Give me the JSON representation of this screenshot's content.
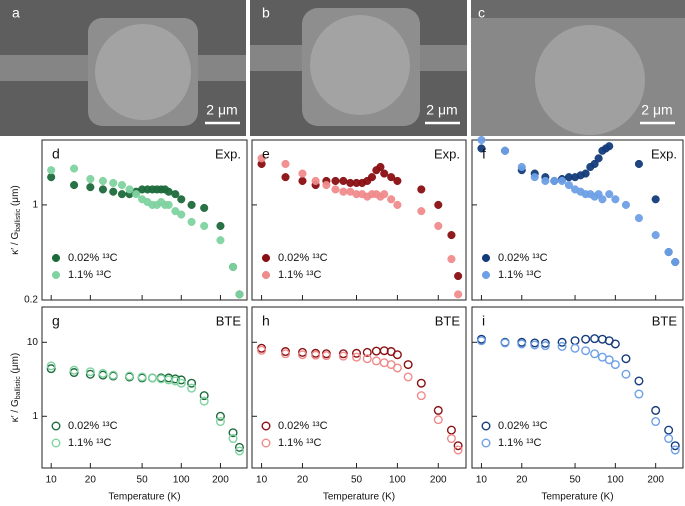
{
  "images": [
    {
      "label": "a",
      "scale": "2 μm"
    },
    {
      "label": "b",
      "scale": "2 μm"
    },
    {
      "label": "c",
      "scale": "2 μm"
    }
  ],
  "chart_data": [
    {
      "type": "scatter",
      "panel": "d",
      "annotation": "Exp.",
      "marker": "filled",
      "ylabel": [
        "κ′ / G",
        "ballistic",
        " (μm)"
      ],
      "xscale": "log",
      "yscale": "log",
      "xlim": [
        8.5,
        320
      ],
      "ylim": [
        0.2,
        3
      ],
      "xticks": [
        10,
        20,
        50,
        100,
        200
      ],
      "xticklabels": false,
      "yticks": [
        0.2,
        1
      ],
      "yticklabels": true,
      "legend": "lower left",
      "series": [
        {
          "name": "0.02% ¹³C",
          "color": "#1d6a3b",
          "x": [
            10,
            15,
            20,
            25,
            30,
            35,
            40,
            45,
            50,
            55,
            60,
            65,
            70,
            75,
            80,
            90,
            100,
            120,
            150,
            200,
            250,
            280
          ],
          "values": [
            1.6,
            1.4,
            1.35,
            1.3,
            1.25,
            1.2,
            1.2,
            1.25,
            1.3,
            1.3,
            1.3,
            1.3,
            1.3,
            1.3,
            1.25,
            1.2,
            1.1,
            1.0,
            0.95,
            0.7,
            0.35,
            0.22
          ]
        },
        {
          "name": "1.1% ¹³C",
          "color": "#7fd3a0",
          "x": [
            10,
            15,
            20,
            25,
            30,
            35,
            40,
            45,
            50,
            55,
            60,
            65,
            70,
            75,
            80,
            90,
            100,
            120,
            150,
            200,
            250,
            280
          ],
          "values": [
            1.8,
            1.85,
            1.55,
            1.5,
            1.45,
            1.4,
            1.3,
            1.2,
            1.1,
            1.05,
            1.0,
            1.0,
            1.05,
            1.0,
            1.0,
            0.9,
            0.85,
            0.75,
            0.7,
            0.55,
            0.35,
            0.22
          ]
        }
      ]
    },
    {
      "type": "scatter",
      "panel": "e",
      "annotation": "Exp.",
      "marker": "filled",
      "xscale": "log",
      "yscale": "log",
      "xlim": [
        8.5,
        320
      ],
      "ylim": [
        0.2,
        3
      ],
      "xticks": [
        10,
        20,
        50,
        100,
        200
      ],
      "xticklabels": false,
      "yticks": [
        0.2,
        1
      ],
      "yticklabels": false,
      "legend": "lower left",
      "series": [
        {
          "name": "0.02% ¹³C",
          "color": "#8a0f12",
          "x": [
            10,
            15,
            20,
            25,
            30,
            35,
            40,
            45,
            50,
            55,
            60,
            65,
            70,
            75,
            80,
            90,
            100,
            150,
            200,
            250,
            280
          ],
          "values": [
            2.0,
            1.6,
            1.5,
            1.4,
            1.5,
            1.5,
            1.5,
            1.45,
            1.45,
            1.45,
            1.5,
            1.6,
            1.8,
            1.9,
            1.7,
            1.6,
            1.5,
            1.3,
            1.0,
            0.6,
            0.3
          ]
        },
        {
          "name": "1.1% ¹³C",
          "color": "#f08b8b",
          "x": [
            10,
            15,
            20,
            25,
            30,
            35,
            40,
            45,
            50,
            55,
            60,
            65,
            70,
            75,
            80,
            90,
            100,
            150,
            200,
            250,
            280
          ],
          "values": [
            2.2,
            2.0,
            1.7,
            1.5,
            1.4,
            1.3,
            1.25,
            1.25,
            1.2,
            1.2,
            1.15,
            1.2,
            1.2,
            1.15,
            1.2,
            1.1,
            1.0,
            0.9,
            0.7,
            0.4,
            0.22
          ]
        }
      ]
    },
    {
      "type": "scatter",
      "panel": "f",
      "annotation": "Exp.",
      "marker": "filled",
      "xscale": "log",
      "yscale": "log",
      "xlim": [
        8.5,
        320
      ],
      "ylim": [
        0.2,
        3
      ],
      "xticks": [
        10,
        20,
        50,
        100,
        200
      ],
      "xticklabels": false,
      "yticks": [
        0.2,
        1
      ],
      "yticklabels": false,
      "legend": "lower left",
      "series": [
        {
          "name": "0.02% ¹³C",
          "color": "#143c7a",
          "x": [
            10,
            15,
            20,
            25,
            30,
            35,
            40,
            45,
            50,
            55,
            60,
            65,
            70,
            75,
            80,
            85,
            90,
            150,
            200,
            250,
            280
          ],
          "values": [
            2.6,
            2.5,
            1.8,
            1.7,
            1.6,
            1.5,
            1.55,
            1.6,
            1.6,
            1.65,
            1.7,
            1.9,
            2.0,
            2.2,
            2.5,
            2.6,
            2.7,
            2.0,
            1.1,
            0.45,
            0.38
          ]
        },
        {
          "name": "1.1% ¹³C",
          "color": "#6ea0e6",
          "x": [
            10,
            15,
            20,
            25,
            30,
            35,
            40,
            45,
            50,
            55,
            60,
            65,
            70,
            75,
            80,
            90,
            100,
            120,
            150,
            200,
            250,
            280
          ],
          "values": [
            3.0,
            2.5,
            1.9,
            1.6,
            1.5,
            1.5,
            1.5,
            1.4,
            1.3,
            1.25,
            1.2,
            1.2,
            1.15,
            1.2,
            1.1,
            1.2,
            1.1,
            1.0,
            0.8,
            0.6,
            0.45,
            0.38
          ]
        }
      ]
    },
    {
      "type": "scatter",
      "panel": "g",
      "annotation": "BTE",
      "marker": "open",
      "ylabel": [
        "κ′ / G",
        "ballistic",
        " (μm)"
      ],
      "xlabel": "Temperature (K)",
      "xscale": "log",
      "yscale": "log",
      "xlim": [
        8.5,
        320
      ],
      "ylim": [
        0.2,
        30
      ],
      "xticks": [
        10,
        20,
        50,
        100,
        200
      ],
      "xticklabels": true,
      "yticks": [
        1,
        10
      ],
      "yticklabels": true,
      "legend": "lower left",
      "series": [
        {
          "name": "0.02% ¹³C",
          "color": "#1d6a3b",
          "x": [
            10,
            15,
            20,
            25,
            30,
            40,
            50,
            60,
            70,
            80,
            90,
            100,
            120,
            150,
            200,
            250,
            280
          ],
          "values": [
            4.4,
            3.9,
            3.7,
            3.6,
            3.5,
            3.4,
            3.3,
            3.3,
            3.3,
            3.3,
            3.2,
            3.1,
            2.8,
            1.9,
            1.0,
            0.6,
            0.38
          ]
        },
        {
          "name": "1.1% ¹³C",
          "color": "#7fd3a0",
          "x": [
            10,
            15,
            20,
            25,
            30,
            40,
            50,
            60,
            70,
            80,
            90,
            100,
            120,
            150,
            200,
            250,
            280
          ],
          "values": [
            4.8,
            4.2,
            4.0,
            3.8,
            3.6,
            3.5,
            3.4,
            3.3,
            3.2,
            3.1,
            3.0,
            2.8,
            2.4,
            1.6,
            0.85,
            0.5,
            0.34
          ]
        }
      ]
    },
    {
      "type": "scatter",
      "panel": "h",
      "annotation": "BTE",
      "marker": "open",
      "xlabel": "Temperature (K)",
      "xscale": "log",
      "yscale": "log",
      "xlim": [
        8.5,
        320
      ],
      "ylim": [
        0.2,
        30
      ],
      "xticks": [
        10,
        20,
        50,
        100,
        200
      ],
      "xticklabels": true,
      "yticks": [
        1,
        10
      ],
      "yticklabels": false,
      "legend": "lower left",
      "series": [
        {
          "name": "0.02% ¹³C",
          "color": "#8a0f12",
          "x": [
            10,
            15,
            20,
            25,
            30,
            40,
            50,
            60,
            70,
            80,
            90,
            100,
            120,
            150,
            200,
            250,
            280
          ],
          "values": [
            8.3,
            7.5,
            7.3,
            7.1,
            7.0,
            7.0,
            7.1,
            7.3,
            7.6,
            7.7,
            7.5,
            6.8,
            5.0,
            2.8,
            1.2,
            0.65,
            0.4
          ]
        },
        {
          "name": "1.1% ¹³C",
          "color": "#f08b8b",
          "x": [
            10,
            15,
            20,
            25,
            30,
            40,
            50,
            60,
            70,
            80,
            90,
            100,
            120,
            150,
            200,
            250,
            280
          ],
          "values": [
            7.8,
            7.0,
            6.8,
            6.7,
            6.6,
            6.5,
            6.3,
            6.0,
            5.6,
            5.3,
            5.0,
            4.5,
            3.4,
            1.9,
            0.9,
            0.5,
            0.35
          ]
        }
      ]
    },
    {
      "type": "scatter",
      "panel": "i",
      "annotation": "BTE",
      "marker": "open",
      "xlabel": "Temperature (K)",
      "xscale": "log",
      "yscale": "log",
      "xlim": [
        8.5,
        320
      ],
      "ylim": [
        0.2,
        30
      ],
      "xticks": [
        10,
        20,
        50,
        100,
        200
      ],
      "xticklabels": true,
      "yticks": [
        1,
        10
      ],
      "yticklabels": false,
      "legend": "lower left",
      "series": [
        {
          "name": "0.02% ¹³C",
          "color": "#143c7a",
          "x": [
            10,
            15,
            20,
            25,
            30,
            40,
            50,
            60,
            70,
            80,
            90,
            100,
            120,
            150,
            200,
            250,
            280
          ],
          "values": [
            11,
            10,
            10,
            9.8,
            9.7,
            10,
            10.5,
            11,
            11.2,
            11,
            10.5,
            9.5,
            6.0,
            3.0,
            1.2,
            0.65,
            0.4
          ]
        },
        {
          "name": "1.1% ¹³C",
          "color": "#6ea0e6",
          "x": [
            10,
            15,
            20,
            25,
            30,
            40,
            50,
            60,
            70,
            80,
            90,
            100,
            120,
            150,
            200,
            250,
            280
          ],
          "values": [
            10.5,
            9.8,
            9.5,
            9.2,
            9.0,
            8.8,
            8.3,
            7.7,
            7.0,
            6.3,
            5.8,
            5.0,
            3.7,
            2.0,
            0.85,
            0.5,
            0.35
          ]
        }
      ]
    }
  ]
}
